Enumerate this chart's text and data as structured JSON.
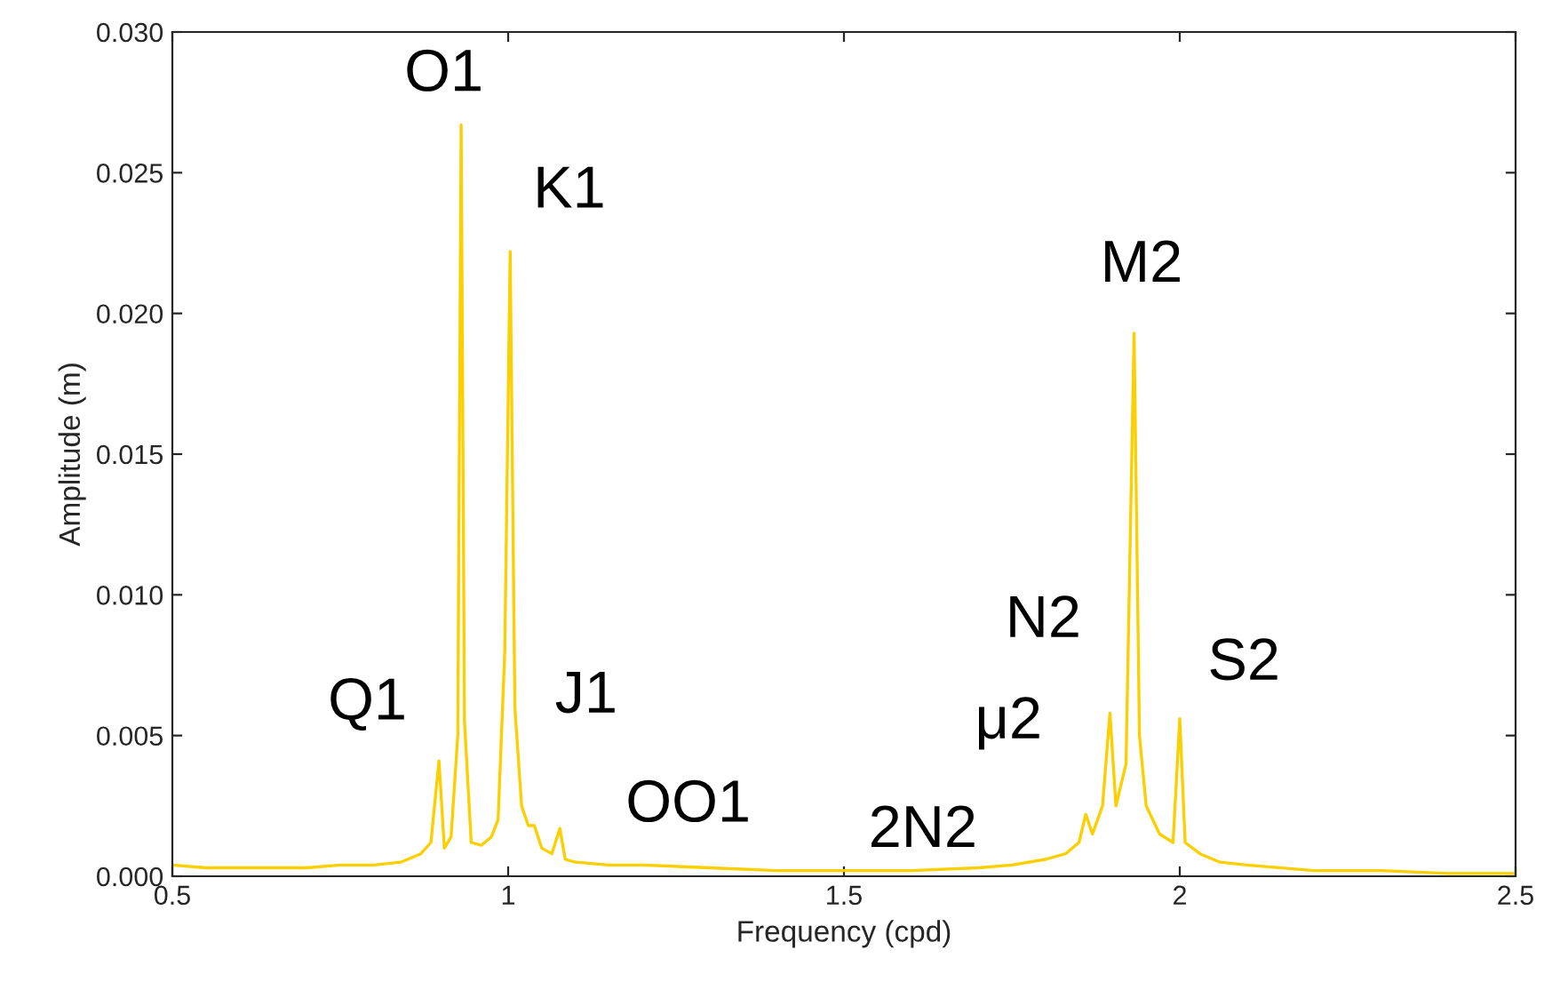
{
  "chart_data": {
    "type": "line",
    "xlabel": "Frequency (cpd)",
    "ylabel": "Amplitude (m)",
    "x": [
      0.5,
      0.55,
      0.6,
      0.65,
      0.7,
      0.75,
      0.8,
      0.84,
      0.87,
      0.885,
      0.897,
      0.905,
      0.915,
      0.925,
      0.93,
      0.935,
      0.945,
      0.96,
      0.975,
      0.985,
      0.995,
      1.003,
      1.01,
      1.02,
      1.03,
      1.039,
      1.05,
      1.065,
      1.077,
      1.085,
      1.1,
      1.15,
      1.2,
      1.3,
      1.4,
      1.5,
      1.6,
      1.7,
      1.75,
      1.8,
      1.83,
      1.85,
      1.86,
      1.87,
      1.885,
      1.896,
      1.905,
      1.92,
      1.932,
      1.94,
      1.95,
      1.97,
      1.99,
      2.0,
      2.008,
      2.03,
      2.06,
      2.1,
      2.2,
      2.3,
      2.4,
      2.5
    ],
    "series": [
      {
        "color": "#fccf00",
        "values": [
          0.0004,
          0.0003,
          0.0003,
          0.0003,
          0.0003,
          0.0004,
          0.0004,
          0.0005,
          0.0008,
          0.0012,
          0.0041,
          0.001,
          0.0014,
          0.005,
          0.0267,
          0.0055,
          0.0012,
          0.0011,
          0.0014,
          0.002,
          0.008,
          0.0222,
          0.006,
          0.0025,
          0.0018,
          0.0018,
          0.001,
          0.0008,
          0.0017,
          0.0006,
          0.0005,
          0.0004,
          0.0004,
          0.0003,
          0.0002,
          0.0002,
          0.0002,
          0.0003,
          0.0004,
          0.0006,
          0.0008,
          0.0012,
          0.0022,
          0.0015,
          0.0025,
          0.0058,
          0.0025,
          0.004,
          0.0193,
          0.005,
          0.0025,
          0.0015,
          0.0012,
          0.0056,
          0.0012,
          0.0008,
          0.0005,
          0.0004,
          0.0002,
          0.0002,
          0.0001,
          0.0001
        ]
      }
    ],
    "xlim": [
      0.5,
      2.5
    ],
    "ylim": [
      0,
      0.03
    ],
    "xticks": [
      0.5,
      1,
      1.5,
      2,
      2.5
    ],
    "yticks": [
      {
        "value": 0,
        "label": "0.000"
      },
      {
        "value": 0.005,
        "label": "0.005"
      },
      {
        "value": 0.01,
        "label": "0.010"
      },
      {
        "value": 0.015,
        "label": "0.015"
      },
      {
        "value": 0.02,
        "label": "0.020"
      },
      {
        "value": 0.025,
        "label": "0.025"
      },
      {
        "value": 0.03,
        "label": "0.030"
      }
    ],
    "annotations": [
      {
        "text": "O1",
        "x": 0.93,
        "y": 0.0267
      },
      {
        "text": "K1",
        "x": 1.003,
        "y": 0.0222
      },
      {
        "text": "Q1",
        "x": 0.897,
        "y": 0.0041
      },
      {
        "text": "J1",
        "x": 1.039,
        "y": 0.0018
      },
      {
        "text": "OO1",
        "x": 1.077,
        "y": 0.0017
      },
      {
        "text": "2N2",
        "x": 1.86,
        "y": 0.0022
      },
      {
        "text": "μ2",
        "x": 1.87,
        "y": 0.0015
      },
      {
        "text": "N2",
        "x": 1.896,
        "y": 0.0058
      },
      {
        "text": "M2",
        "x": 1.932,
        "y": 0.0193
      },
      {
        "text": "S2",
        "x": 2.0,
        "y": 0.0056
      }
    ],
    "grid": false,
    "legend": false,
    "marker": "none",
    "line_style": "solid"
  }
}
